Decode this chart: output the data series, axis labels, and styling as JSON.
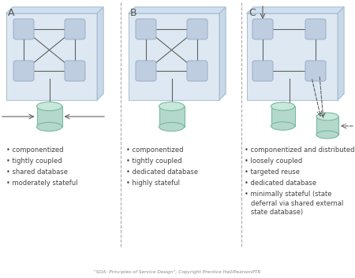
{
  "background_color": "#ffffff",
  "container_fill": "#dde8f2",
  "container_fill_top": "#d0dff0",
  "container_fill_right": "#c8d8e8",
  "container_edge": "#a8c0d0",
  "square_fill": "#bfcde0",
  "square_edge": "#9aaec8",
  "cylinder_fill_body": "#b5d8cc",
  "cylinder_fill_top": "#c8e8dc",
  "cylinder_edge": "#78b8a0",
  "arrow_color": "#606060",
  "divider_color": "#aaaaaa",
  "text_color": "#444444",
  "label_color": "#555555",
  "footer_color": "#888888",
  "section_labels": [
    "A",
    "B",
    "C"
  ],
  "bullet_lists": [
    [
      "componentized",
      "tightly coupled",
      "shared database",
      "moderately stateful"
    ],
    [
      "componentized",
      "tightly coupled",
      "dedicated database",
      "highly stateful"
    ],
    [
      "componentized and distributed",
      "loosely coupled",
      "targeted reuse",
      "dedicated database",
      "minimally stateful (state\ndeferral via shared external\nstate database)"
    ]
  ],
  "footer": "\"SOA: Principles of Service Design\", Copyright Prentice Hall/PearsonPTR"
}
